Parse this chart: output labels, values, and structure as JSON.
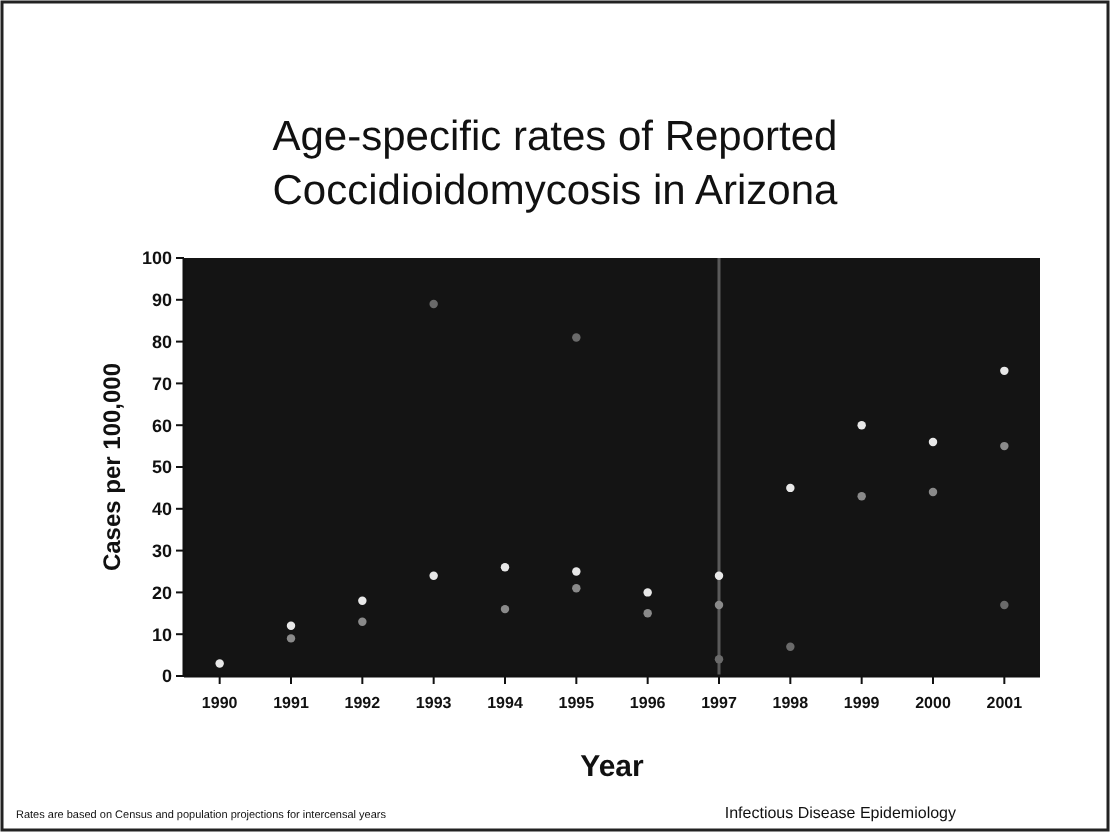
{
  "chart_data": {
    "type": "scatter",
    "title": "Age-specific rates of Reported Coccidioidomycosis in Arizona",
    "xlabel": "Year",
    "ylabel": "Cases per 100,000",
    "x": [
      1990,
      1991,
      1992,
      1993,
      1994,
      1995,
      1996,
      1997,
      1998,
      1999,
      2000,
      2001
    ],
    "series": [
      {
        "color": "#e8e8e8",
        "values": [
          3,
          12,
          18,
          24,
          26,
          25,
          20,
          24,
          45,
          60,
          56,
          73
        ]
      },
      {
        "color": "#8a8a8a",
        "values": [
          null,
          9,
          13,
          null,
          16,
          21,
          15,
          17,
          null,
          43,
          44,
          55
        ]
      },
      {
        "color": "#6a6a6a",
        "values": [
          null,
          null,
          null,
          89,
          null,
          81,
          null,
          4,
          7,
          null,
          null,
          17
        ]
      }
    ],
    "xlim": [
      1989.5,
      2001.5
    ],
    "xticks": [
      1990,
      1991,
      1992,
      1993,
      1994,
      1995,
      1996,
      1997,
      1998,
      1999,
      2000,
      2001
    ],
    "ylim": [
      0,
      100
    ],
    "yticks": [
      0,
      10,
      20,
      30,
      40,
      50,
      60,
      70,
      80,
      90,
      100
    ],
    "ref_lines": [
      {
        "axis": "x",
        "value": 1997,
        "color": "#5a5a5a"
      }
    ],
    "marker": "circle",
    "grid": false,
    "annotations": [
      "Rates are based on Census and population projections for intercensal years",
      "Infectious Disease Epidemiology"
    ]
  }
}
